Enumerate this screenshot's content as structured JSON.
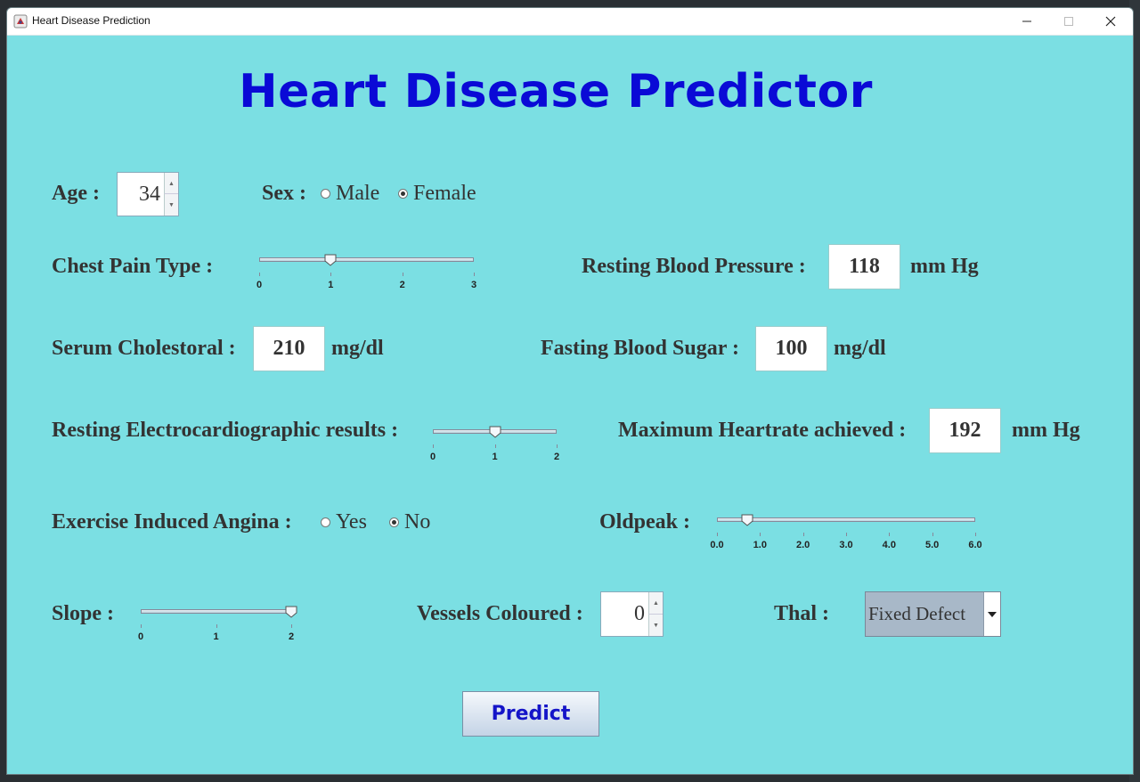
{
  "window": {
    "title": "Heart Disease Prediction",
    "controls": {
      "minimize": "—",
      "maximize": "☐",
      "close": "✕"
    }
  },
  "heading": "Heart Disease Predictor",
  "age": {
    "label": "Age :",
    "value": "34"
  },
  "sex": {
    "label": "Sex :",
    "options": [
      "Male",
      "Female"
    ],
    "selected": "Female"
  },
  "chest_pain": {
    "label": "Chest Pain Type :",
    "ticks": [
      "0",
      "1",
      "2",
      "3"
    ],
    "value": 1,
    "min": 0,
    "max": 3
  },
  "resting_bp": {
    "label": "Resting Blood Pressure :",
    "value": "118",
    "unit": "mm Hg"
  },
  "cholesterol": {
    "label": "Serum Cholestoral :",
    "value": "210",
    "unit": "mg/dl"
  },
  "fasting_sugar": {
    "label": "Fasting Blood Sugar :",
    "value": "100",
    "unit": "mg/dl"
  },
  "rest_ecg": {
    "label": "Resting Electrocardiographic results :",
    "ticks": [
      "0",
      "1",
      "2"
    ],
    "value": 1,
    "min": 0,
    "max": 2
  },
  "max_hr": {
    "label": "Maximum Heartrate achieved :",
    "value": "192",
    "unit": "mm Hg"
  },
  "angina": {
    "label": "Exercise Induced Angina :",
    "options": [
      "Yes",
      "No"
    ],
    "selected": "No"
  },
  "oldpeak": {
    "label": "Oldpeak :",
    "ticks": [
      "0.0",
      "1.0",
      "2.0",
      "3.0",
      "4.0",
      "5.0",
      "6.0"
    ],
    "value": 0.7,
    "min": 0,
    "max": 6
  },
  "slope": {
    "label": "Slope :",
    "ticks": [
      "0",
      "1",
      "2"
    ],
    "value": 2,
    "min": 0,
    "max": 2
  },
  "vessels": {
    "label": "Vessels Coloured :",
    "value": "0"
  },
  "thal": {
    "label": "Thal :",
    "selected": "Fixed Defect"
  },
  "predict_label": "Predict",
  "colors": {
    "background": "#7bdfe3",
    "heading": "#0a0ad6",
    "button_text": "#1414c8"
  }
}
